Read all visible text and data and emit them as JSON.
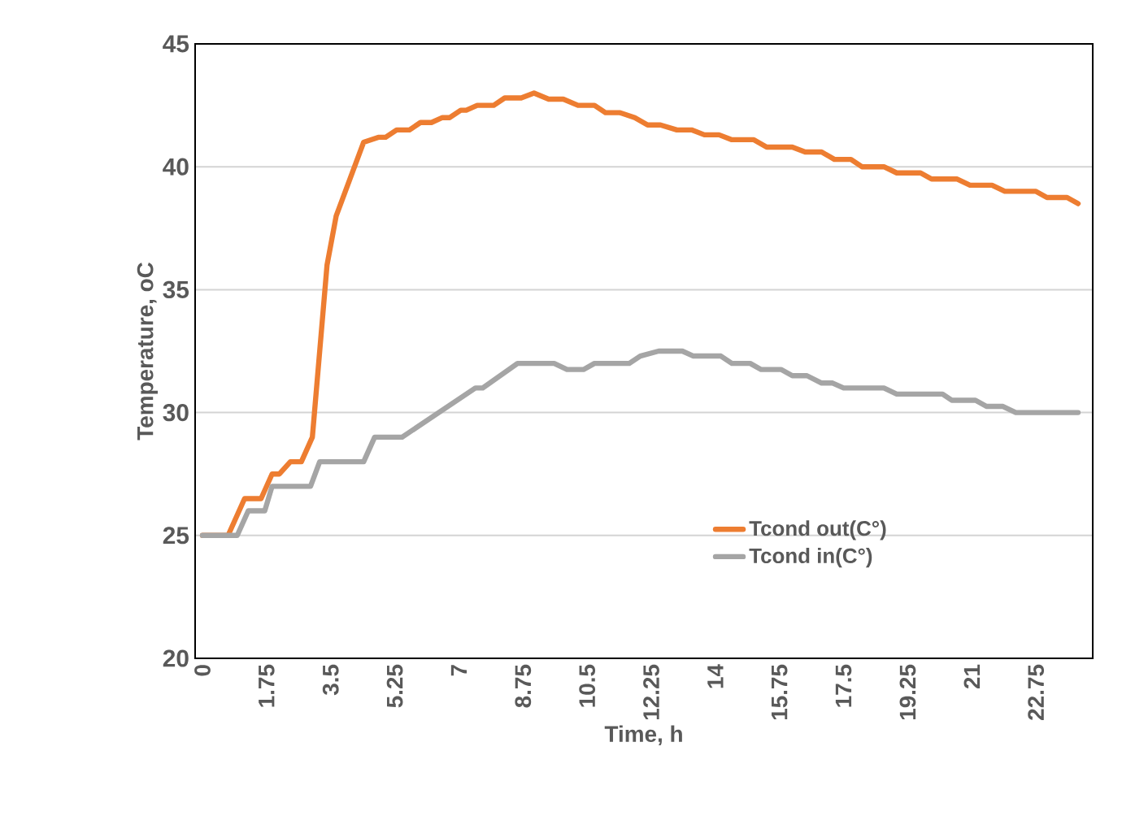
{
  "chart_data": {
    "type": "line",
    "xlabel": "Time, h",
    "ylabel": "Temperature, oC",
    "xlim": [
      -0.2,
      24.3
    ],
    "ylim": [
      20,
      45
    ],
    "xticks": [
      0,
      1.75,
      3.5,
      5.25,
      7,
      8.75,
      10.5,
      12.25,
      14,
      15.75,
      17.5,
      19.25,
      21,
      22.75
    ],
    "yticks": [
      20,
      25,
      30,
      35,
      40,
      45
    ],
    "grid": "y",
    "legend": "bottom right",
    "marker": "none",
    "line_style": "solid",
    "series": [
      {
        "name": "Tcond out(C°)",
        "color": "#ed7d31",
        "x": [
          0,
          0.7,
          1.15,
          1.6,
          1.9,
          2.1,
          2.4,
          2.7,
          3.0,
          3.4,
          3.65,
          4.4,
          4.8,
          5.0,
          5.3,
          5.65,
          5.95,
          6.25,
          6.55,
          6.75,
          7.05,
          7.2,
          7.5,
          7.95,
          8.25,
          8.7,
          9.05,
          9.45,
          9.85,
          10.25,
          10.7,
          11.0,
          11.4,
          11.8,
          12.15,
          12.5,
          12.95,
          13.35,
          13.7,
          14.1,
          14.45,
          15.05,
          15.4,
          16.1,
          16.45,
          16.9,
          17.25,
          17.7,
          18.0,
          18.6,
          18.95,
          19.6,
          19.9,
          20.6,
          20.95,
          21.55,
          21.9,
          22.75,
          23.05,
          23.6,
          23.9
        ],
        "values": [
          25,
          25,
          26.5,
          26.5,
          27.5,
          27.5,
          28,
          28,
          29,
          36,
          38,
          41,
          41.2,
          41.2,
          41.5,
          41.5,
          41.8,
          41.8,
          42,
          42,
          42.3,
          42.3,
          42.5,
          42.5,
          42.8,
          42.8,
          43,
          42.75,
          42.75,
          42.5,
          42.5,
          42.2,
          42.2,
          42,
          41.7,
          41.7,
          41.5,
          41.5,
          41.3,
          41.3,
          41.1,
          41.1,
          40.8,
          40.8,
          40.6,
          40.6,
          40.3,
          40.3,
          40,
          40,
          39.75,
          39.75,
          39.5,
          39.5,
          39.25,
          39.25,
          39,
          39,
          38.75,
          38.75,
          38.5
        ]
      },
      {
        "name": "Tcond in(C°)",
        "color": "#a5a5a5",
        "x": [
          0,
          0.95,
          1.25,
          1.7,
          1.9,
          2.95,
          3.2,
          4.4,
          4.7,
          5.45,
          7.45,
          7.65,
          8.6,
          9.6,
          9.95,
          10.4,
          10.7,
          11.65,
          11.95,
          12.45,
          13.1,
          13.4,
          14.15,
          14.45,
          14.95,
          15.25,
          15.8,
          16.1,
          16.5,
          16.9,
          17.2,
          17.5,
          18.6,
          18.95,
          20.2,
          20.45,
          21.1,
          21.4,
          21.85,
          22.2,
          23.9
        ],
        "values": [
          25,
          25,
          26,
          26,
          27,
          27,
          28,
          28,
          29,
          29,
          31,
          31,
          32,
          32,
          31.75,
          31.75,
          32,
          32,
          32.3,
          32.5,
          32.5,
          32.3,
          32.3,
          32,
          32,
          31.75,
          31.75,
          31.5,
          31.5,
          31.2,
          31.2,
          31,
          31,
          30.75,
          30.75,
          30.5,
          30.5,
          30.25,
          30.25,
          30,
          30
        ]
      }
    ]
  }
}
